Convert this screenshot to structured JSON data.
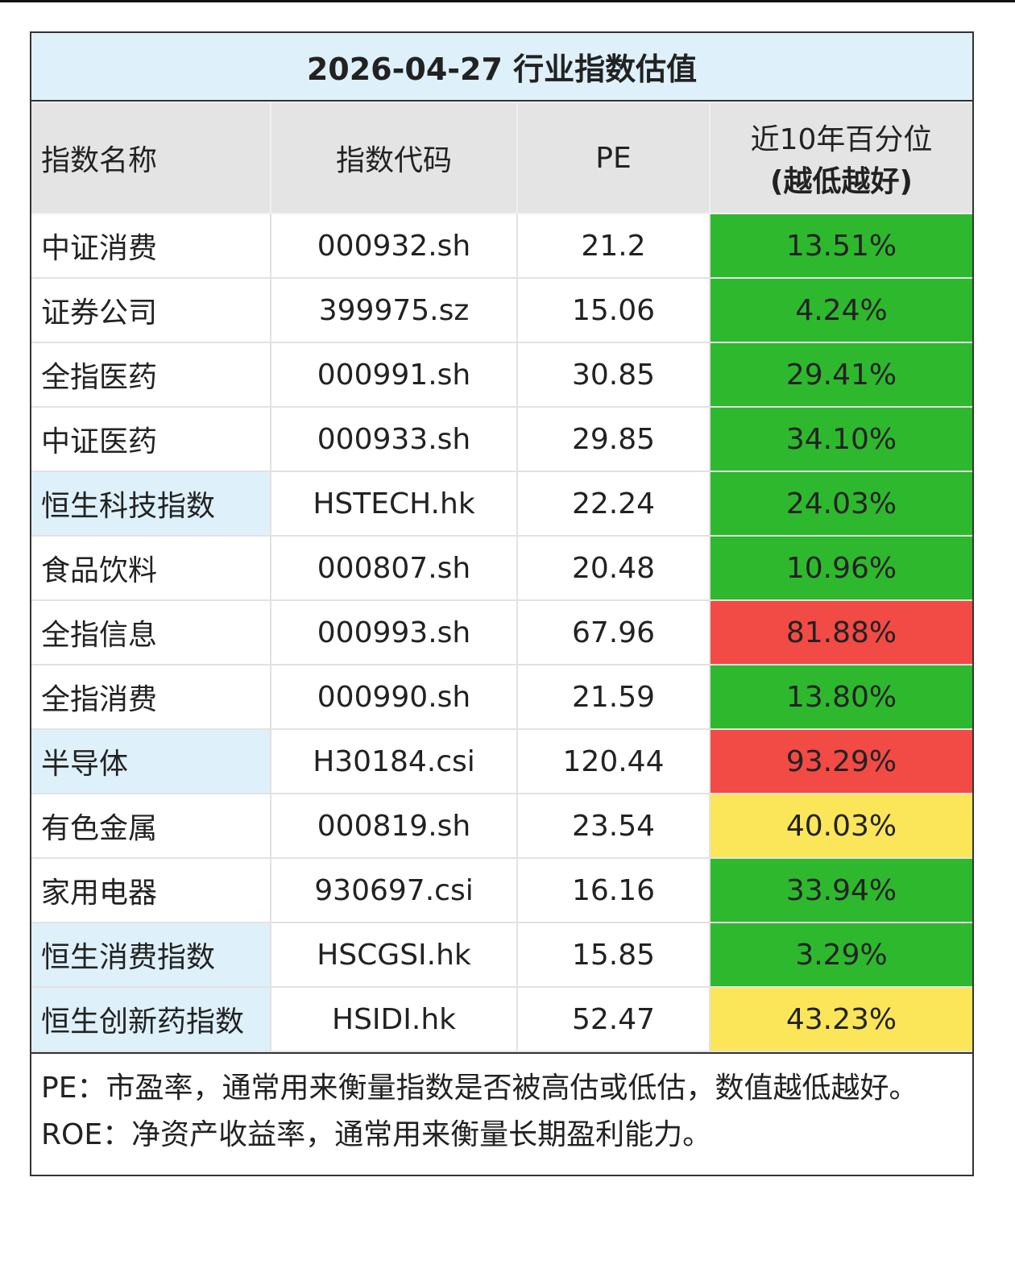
{
  "table": {
    "title": "2026-04-27 行业指数估值",
    "header": {
      "name": "指数名称",
      "code": "指数代码",
      "pe": "PE",
      "pct_line1": "近10年百分位",
      "pct_line2": "(越低越好)"
    },
    "rows": [
      {
        "name": "中证消费",
        "code": "000932.sh",
        "pe": "21.2",
        "pct": "13.51%",
        "pct_color": "#2eb82e",
        "name_color": "#ffffff"
      },
      {
        "name": "证券公司",
        "code": "399975.sz",
        "pe": "15.06",
        "pct": "4.24%",
        "pct_color": "#2eb82e",
        "name_color": "#ffffff"
      },
      {
        "name": "全指医药",
        "code": "000991.sh",
        "pe": "30.85",
        "pct": "29.41%",
        "pct_color": "#2eb82e",
        "name_color": "#ffffff"
      },
      {
        "name": "中证医药",
        "code": "000933.sh",
        "pe": "29.85",
        "pct": "34.10%",
        "pct_color": "#2eb82e",
        "name_color": "#ffffff"
      },
      {
        "name": "恒生科技指数",
        "code": "HSTECH.hk",
        "pe": "22.24",
        "pct": "24.03%",
        "pct_color": "#2eb82e",
        "name_color": "#def0f9"
      },
      {
        "name": "食品饮料",
        "code": "000807.sh",
        "pe": "20.48",
        "pct": "10.96%",
        "pct_color": "#2eb82e",
        "name_color": "#ffffff"
      },
      {
        "name": "全指信息",
        "code": "000993.sh",
        "pe": "67.96",
        "pct": "81.88%",
        "pct_color": "#f24a45",
        "name_color": "#ffffff"
      },
      {
        "name": "全指消费",
        "code": "000990.sh",
        "pe": "21.59",
        "pct": "13.80%",
        "pct_color": "#2eb82e",
        "name_color": "#ffffff"
      },
      {
        "name": "半导体",
        "code": "H30184.csi",
        "pe": "120.44",
        "pct": "93.29%",
        "pct_color": "#f24a45",
        "name_color": "#def0f9"
      },
      {
        "name": "有色金属",
        "code": "000819.sh",
        "pe": "23.54",
        "pct": "40.03%",
        "pct_color": "#fbe65a",
        "name_color": "#ffffff"
      },
      {
        "name": "家用电器",
        "code": "930697.csi",
        "pe": "16.16",
        "pct": "33.94%",
        "pct_color": "#2eb82e",
        "name_color": "#ffffff"
      },
      {
        "name": "恒生消费指数",
        "code": "HSCGSI.hk",
        "pe": "15.85",
        "pct": "3.29%",
        "pct_color": "#2eb82e",
        "name_color": "#def0f9"
      },
      {
        "name": "恒生创新药指数",
        "code": "HSIDI.hk",
        "pe": "52.47",
        "pct": "43.23%",
        "pct_color": "#fbe65a",
        "name_color": "#def0f9"
      }
    ],
    "notes": [
      "PE：市盈率，通常用来衡量指数是否被高估或低估，数值越低越好。",
      "ROE：净资产收益率，通常用来衡量长期盈利能力。"
    ]
  }
}
